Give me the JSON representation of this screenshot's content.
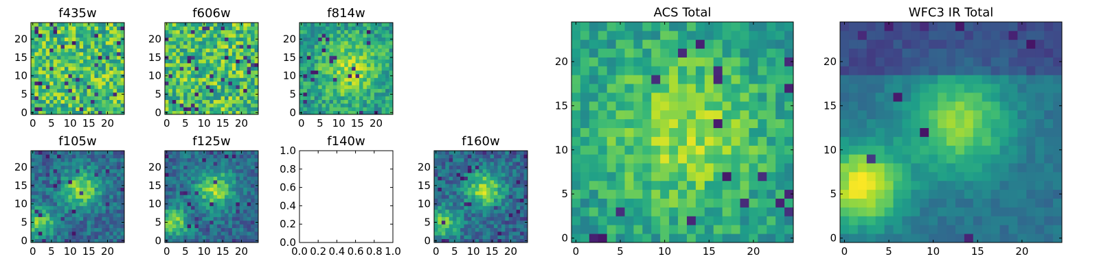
{
  "colormap": "viridis",
  "chart_data": [
    {
      "type": "heatmap",
      "title": "f435w",
      "size": 25,
      "x_ticks": [
        "0",
        "5",
        "10",
        "15",
        "20"
      ],
      "y_ticks": [
        "0",
        "5",
        "10",
        "15",
        "20"
      ],
      "xlim": [
        -0.5,
        24.5
      ],
      "ylim": [
        -0.5,
        24.5
      ],
      "value_range": [
        0,
        1
      ],
      "pattern": "noisy-high",
      "seed": 11,
      "values": []
    },
    {
      "type": "heatmap",
      "title": "f606w",
      "size": 25,
      "x_ticks": [
        "0",
        "5",
        "10",
        "15",
        "20"
      ],
      "y_ticks": [
        "0",
        "5",
        "10",
        "15",
        "20"
      ],
      "xlim": [
        -0.5,
        24.5
      ],
      "ylim": [
        -0.5,
        24.5
      ],
      "value_range": [
        0,
        1
      ],
      "pattern": "noisy-high",
      "seed": 23,
      "values": []
    },
    {
      "type": "heatmap",
      "title": "f814w",
      "size": 25,
      "x_ticks": [
        "0",
        "5",
        "10",
        "15",
        "20"
      ],
      "y_ticks": [
        "0",
        "5",
        "10",
        "15",
        "20"
      ],
      "xlim": [
        -0.5,
        24.5
      ],
      "ylim": [
        -0.5,
        24.5
      ],
      "value_range": [
        0,
        1
      ],
      "pattern": "source-bright",
      "seed": 37,
      "values": []
    },
    {
      "type": "heatmap",
      "title": "f105w",
      "size": 25,
      "x_ticks": [
        "0",
        "5",
        "10",
        "15",
        "20"
      ],
      "y_ticks": [
        "0",
        "5",
        "10",
        "15",
        "20"
      ],
      "xlim": [
        -0.5,
        24.5
      ],
      "ylim": [
        -0.5,
        24.5
      ],
      "value_range": [
        0,
        1
      ],
      "pattern": "source-ir",
      "seed": 41,
      "values": []
    },
    {
      "type": "heatmap",
      "title": "f125w",
      "size": 25,
      "x_ticks": [
        "0",
        "5",
        "10",
        "15",
        "20"
      ],
      "y_ticks": [
        "0",
        "5",
        "10",
        "15",
        "20"
      ],
      "xlim": [
        -0.5,
        24.5
      ],
      "ylim": [
        -0.5,
        24.5
      ],
      "value_range": [
        0,
        1
      ],
      "pattern": "source-ir",
      "seed": 53,
      "values": []
    },
    {
      "type": "line",
      "title": "f140w",
      "empty": true,
      "x_ticks": [
        "0.0",
        "0.2",
        "0.4",
        "0.6",
        "0.8",
        "1.0"
      ],
      "y_ticks": [
        "0.0",
        "0.2",
        "0.4",
        "0.6",
        "0.8",
        "1.0"
      ],
      "xlim": [
        0,
        1
      ],
      "ylim": [
        0,
        1
      ],
      "series": []
    },
    {
      "type": "heatmap",
      "title": "f160w",
      "size": 25,
      "x_ticks": [
        "0",
        "5",
        "10",
        "15",
        "20"
      ],
      "y_ticks": [
        "0",
        "5",
        "10",
        "15",
        "20"
      ],
      "xlim": [
        -0.5,
        24.5
      ],
      "ylim": [
        -0.5,
        24.5
      ],
      "value_range": [
        0,
        1
      ],
      "pattern": "source-ir",
      "seed": 67,
      "values": []
    },
    {
      "type": "heatmap",
      "title": "ACS Total",
      "size": 25,
      "x_ticks": [
        "0",
        "5",
        "10",
        "15",
        "20"
      ],
      "y_ticks": [
        "0",
        "5",
        "10",
        "15",
        "20"
      ],
      "xlim": [
        -0.5,
        24.5
      ],
      "ylim": [
        -0.5,
        24.5
      ],
      "value_range": [
        0,
        1
      ],
      "pattern": "acs-total",
      "seed": 79,
      "values": []
    },
    {
      "type": "heatmap",
      "title": "WFC3 IR Total",
      "size": 25,
      "x_ticks": [
        "0",
        "5",
        "10",
        "15",
        "20"
      ],
      "y_ticks": [
        "0",
        "5",
        "10",
        "15",
        "20"
      ],
      "xlim": [
        -0.5,
        24.5
      ],
      "ylim": [
        -0.5,
        24.5
      ],
      "value_range": [
        0,
        1
      ],
      "pattern": "ir-total",
      "seed": 97,
      "values": []
    }
  ]
}
